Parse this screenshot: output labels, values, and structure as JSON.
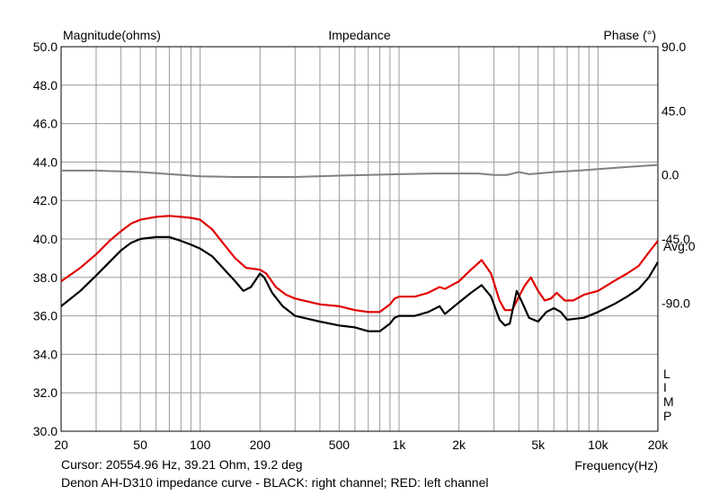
{
  "chart_data": {
    "type": "line",
    "title": "Impedance",
    "ylabel_left": "Magnitude(ohms)",
    "ylabel_right": "Phase (°)",
    "xlabel": "Frequency(Hz)",
    "x_scale": "log",
    "xlim": [
      20,
      20000
    ],
    "ylim": [
      30,
      50
    ],
    "ylim_right": [
      -180,
      90
    ],
    "grid": true,
    "x_ticks": [
      {
        "value": 20,
        "label": "20"
      },
      {
        "value": 50,
        "label": "50"
      },
      {
        "value": 100,
        "label": "100"
      },
      {
        "value": 200,
        "label": "200"
      },
      {
        "value": 500,
        "label": "500"
      },
      {
        "value": 1000,
        "label": "1k"
      },
      {
        "value": 2000,
        "label": "2k"
      },
      {
        "value": 5000,
        "label": "5k"
      },
      {
        "value": 10000,
        "label": "10k"
      },
      {
        "value": 20000,
        "label": "20k"
      }
    ],
    "y_ticks_left": [
      "30.0",
      "32.0",
      "34.0",
      "36.0",
      "38.0",
      "40.0",
      "42.0",
      "44.0",
      "46.0",
      "48.0",
      "50.0"
    ],
    "y_ticks_right": [
      {
        "value": 90,
        "label": "90.0"
      },
      {
        "value": 45,
        "label": "45.0"
      },
      {
        "value": 0,
        "label": "0.0"
      },
      {
        "value": -45,
        "label": "-45.0"
      },
      {
        "value": -90,
        "label": "-90.0"
      }
    ],
    "avg_label": "Avg:0",
    "limp_label": [
      "L",
      "I",
      "M",
      "P"
    ],
    "series": [
      {
        "color": "#e00000",
        "axis": "left",
        "points": [
          [
            20,
            37.8
          ],
          [
            25,
            38.5
          ],
          [
            30,
            39.2
          ],
          [
            35,
            39.9
          ],
          [
            40,
            40.4
          ],
          [
            45,
            40.8
          ],
          [
            50,
            41.0
          ],
          [
            60,
            41.15
          ],
          [
            70,
            41.2
          ],
          [
            80,
            41.15
          ],
          [
            90,
            41.1
          ],
          [
            100,
            41.0
          ],
          [
            115,
            40.5
          ],
          [
            130,
            39.8
          ],
          [
            150,
            39.0
          ],
          [
            170,
            38.5
          ],
          [
            200,
            38.4
          ],
          [
            215,
            38.2
          ],
          [
            240,
            37.5
          ],
          [
            270,
            37.1
          ],
          [
            300,
            36.9
          ],
          [
            400,
            36.6
          ],
          [
            500,
            36.5
          ],
          [
            600,
            36.3
          ],
          [
            700,
            36.2
          ],
          [
            800,
            36.2
          ],
          [
            900,
            36.6
          ],
          [
            950,
            36.9
          ],
          [
            1000,
            37.0
          ],
          [
            1200,
            37.0
          ],
          [
            1400,
            37.2
          ],
          [
            1600,
            37.5
          ],
          [
            1700,
            37.4
          ],
          [
            2000,
            37.8
          ],
          [
            2300,
            38.4
          ],
          [
            2600,
            38.9
          ],
          [
            2900,
            38.2
          ],
          [
            3200,
            36.8
          ],
          [
            3400,
            36.3
          ],
          [
            3700,
            36.3
          ],
          [
            4000,
            37.0
          ],
          [
            4300,
            37.6
          ],
          [
            4600,
            38.0
          ],
          [
            5000,
            37.3
          ],
          [
            5400,
            36.8
          ],
          [
            5800,
            36.9
          ],
          [
            6200,
            37.2
          ],
          [
            6800,
            36.8
          ],
          [
            7500,
            36.8
          ],
          [
            8500,
            37.1
          ],
          [
            10000,
            37.3
          ],
          [
            12000,
            37.8
          ],
          [
            14000,
            38.2
          ],
          [
            16000,
            38.6
          ],
          [
            18000,
            39.3
          ],
          [
            20000,
            39.9
          ]
        ]
      },
      {
        "color": "#000000",
        "axis": "left",
        "points": [
          [
            20,
            36.5
          ],
          [
            25,
            37.3
          ],
          [
            30,
            38.1
          ],
          [
            35,
            38.8
          ],
          [
            40,
            39.4
          ],
          [
            45,
            39.8
          ],
          [
            50,
            40.0
          ],
          [
            60,
            40.1
          ],
          [
            70,
            40.1
          ],
          [
            80,
            39.9
          ],
          [
            90,
            39.7
          ],
          [
            100,
            39.5
          ],
          [
            115,
            39.1
          ],
          [
            130,
            38.5
          ],
          [
            150,
            37.8
          ],
          [
            165,
            37.3
          ],
          [
            180,
            37.5
          ],
          [
            200,
            38.2
          ],
          [
            210,
            38.0
          ],
          [
            230,
            37.2
          ],
          [
            260,
            36.5
          ],
          [
            300,
            36.0
          ],
          [
            400,
            35.7
          ],
          [
            500,
            35.5
          ],
          [
            600,
            35.4
          ],
          [
            700,
            35.2
          ],
          [
            800,
            35.2
          ],
          [
            900,
            35.6
          ],
          [
            950,
            35.9
          ],
          [
            1000,
            36.0
          ],
          [
            1200,
            36.0
          ],
          [
            1400,
            36.2
          ],
          [
            1600,
            36.5
          ],
          [
            1700,
            36.1
          ],
          [
            2000,
            36.7
          ],
          [
            2300,
            37.2
          ],
          [
            2600,
            37.6
          ],
          [
            2900,
            37.0
          ],
          [
            3200,
            35.8
          ],
          [
            3400,
            35.5
          ],
          [
            3600,
            35.6
          ],
          [
            3900,
            37.3
          ],
          [
            4200,
            36.6
          ],
          [
            4500,
            35.9
          ],
          [
            5000,
            35.7
          ],
          [
            5500,
            36.2
          ],
          [
            6000,
            36.4
          ],
          [
            6500,
            36.2
          ],
          [
            7000,
            35.8
          ],
          [
            8500,
            35.9
          ],
          [
            10000,
            36.2
          ],
          [
            12000,
            36.6
          ],
          [
            14000,
            37.0
          ],
          [
            16000,
            37.4
          ],
          [
            18000,
            38.0
          ],
          [
            20000,
            38.8
          ]
        ]
      },
      {
        "color": "#808080",
        "axis": "right",
        "points": [
          [
            20,
            3
          ],
          [
            30,
            3
          ],
          [
            50,
            2
          ],
          [
            100,
            -1
          ],
          [
            150,
            -1.5
          ],
          [
            200,
            -1.5
          ],
          [
            300,
            -1.5
          ],
          [
            500,
            -0.5
          ],
          [
            700,
            0
          ],
          [
            1000,
            0.5
          ],
          [
            1500,
            1
          ],
          [
            2000,
            1
          ],
          [
            2500,
            1
          ],
          [
            3000,
            0
          ],
          [
            3500,
            0
          ],
          [
            4000,
            2
          ],
          [
            4500,
            0.5
          ],
          [
            5000,
            1
          ],
          [
            6000,
            2
          ],
          [
            8000,
            3
          ],
          [
            10000,
            4
          ],
          [
            14000,
            5.5
          ],
          [
            20000,
            7
          ]
        ]
      }
    ]
  },
  "footer": {
    "cursor": "Cursor: 20554.96 Hz, 39.21 Ohm, 19.2 deg",
    "caption": "Denon AH-D310 impedance curve - BLACK: right channel; RED: left channel"
  }
}
